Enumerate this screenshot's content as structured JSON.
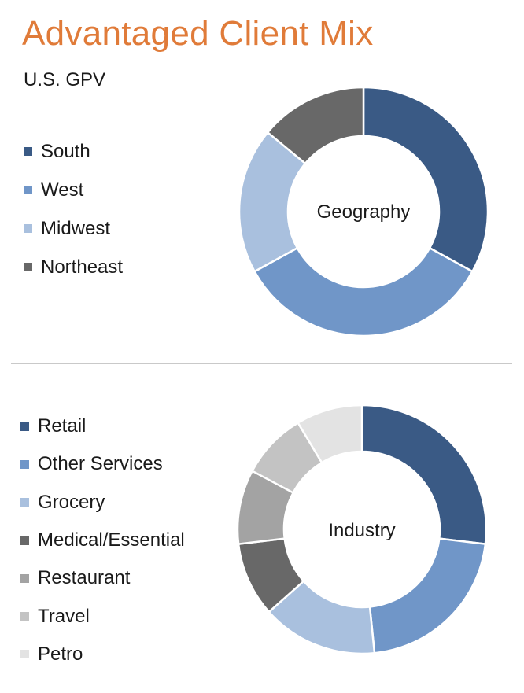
{
  "title": "Advantaged Client Mix",
  "subtitle": "U.S. GPV",
  "chart_data": [
    {
      "type": "pie",
      "variant": "donut",
      "center_label": "Geography",
      "legend_position": "left",
      "categories": [
        "South",
        "West",
        "Midwest",
        "Northeast"
      ],
      "values": [
        33,
        34,
        19,
        14
      ],
      "unit": "%",
      "colors": [
        "#3a5a85",
        "#7096c8",
        "#a9c0de",
        "#686868"
      ]
    },
    {
      "type": "pie",
      "variant": "donut",
      "center_label": "Industry",
      "legend_position": "left",
      "categories": [
        "Retail",
        "Other Services",
        "Grocery",
        "Medical/Essential",
        "Restaurant",
        "Travel",
        "Petro"
      ],
      "values": [
        25,
        20,
        14,
        9,
        9,
        8,
        8
      ],
      "unit": "%",
      "colors": [
        "#3a5a85",
        "#7096c8",
        "#a9c0de",
        "#686868",
        "#a3a3a3",
        "#c3c3c3",
        "#e3e3e3"
      ]
    }
  ]
}
